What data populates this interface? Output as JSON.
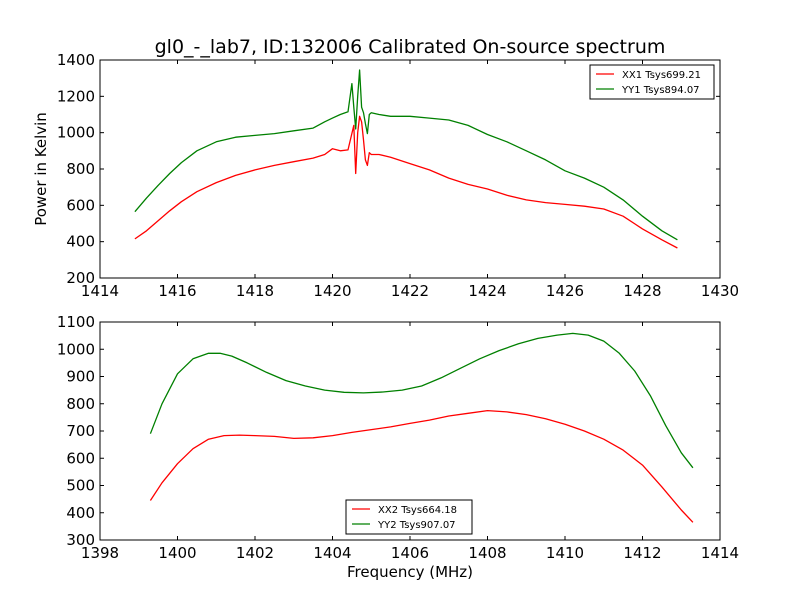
{
  "chart_data": [
    {
      "type": "line",
      "title": "gl0_-_lab7, ID:132006 Calibrated On-source spectrum",
      "xlabel": "",
      "ylabel": "Power in Kelvin",
      "xlim": [
        1414,
        1430
      ],
      "ylim": [
        200,
        1400
      ],
      "xticks": [
        1414,
        1416,
        1418,
        1420,
        1422,
        1424,
        1426,
        1428,
        1430
      ],
      "yticks": [
        200,
        400,
        600,
        800,
        1000,
        1200,
        1400
      ],
      "grid": false,
      "legend_position": "top-right",
      "series": [
        {
          "name": "XX1 Tsys699.21",
          "color": "#ff0000",
          "x": [
            1414.9,
            1415.2,
            1415.5,
            1415.8,
            1416.1,
            1416.5,
            1417.0,
            1417.5,
            1418.0,
            1418.5,
            1419.0,
            1419.5,
            1419.8,
            1420.0,
            1420.2,
            1420.4,
            1420.55,
            1420.6,
            1420.65,
            1420.7,
            1420.75,
            1420.8,
            1420.85,
            1420.9,
            1420.95,
            1421.0,
            1421.2,
            1421.5,
            1422.0,
            1422.5,
            1423.0,
            1423.5,
            1424.0,
            1424.5,
            1425.0,
            1425.5,
            1426.0,
            1426.5,
            1427.0,
            1427.5,
            1428.0,
            1428.5,
            1428.9
          ],
          "values": [
            415,
            460,
            515,
            570,
            620,
            675,
            725,
            765,
            795,
            820,
            840,
            860,
            880,
            912,
            900,
            905,
            1040,
            775,
            1000,
            1090,
            1060,
            960,
            850,
            820,
            890,
            880,
            880,
            865,
            830,
            795,
            750,
            715,
            690,
            655,
            630,
            615,
            605,
            595,
            580,
            540,
            470,
            410,
            365
          ]
        },
        {
          "name": "YY1 Tsys894.07",
          "color": "#008000",
          "x": [
            1414.9,
            1415.2,
            1415.5,
            1415.8,
            1416.1,
            1416.5,
            1417.0,
            1417.5,
            1418.0,
            1418.5,
            1419.0,
            1419.5,
            1419.8,
            1420.0,
            1420.2,
            1420.4,
            1420.5,
            1420.55,
            1420.6,
            1420.65,
            1420.7,
            1420.75,
            1420.8,
            1420.85,
            1420.9,
            1420.95,
            1421.0,
            1421.2,
            1421.5,
            1422.0,
            1422.5,
            1423.0,
            1423.5,
            1424.0,
            1424.5,
            1425.0,
            1425.5,
            1426.0,
            1426.5,
            1427.0,
            1427.5,
            1428.0,
            1428.5,
            1428.9
          ],
          "values": [
            565,
            640,
            710,
            775,
            835,
            900,
            950,
            975,
            985,
            995,
            1010,
            1025,
            1060,
            1080,
            1100,
            1115,
            1270,
            1140,
            1020,
            1200,
            1345,
            1140,
            1110,
            1050,
            995,
            1100,
            1110,
            1100,
            1090,
            1090,
            1080,
            1070,
            1040,
            990,
            950,
            900,
            850,
            790,
            750,
            700,
            630,
            540,
            460,
            410
          ]
        }
      ]
    },
    {
      "type": "line",
      "title": "",
      "xlabel": "Frequency (MHz)",
      "ylabel": "",
      "xlim": [
        1398,
        1414
      ],
      "ylim": [
        300,
        1100
      ],
      "xticks": [
        1398,
        1400,
        1402,
        1404,
        1406,
        1408,
        1410,
        1412,
        1414
      ],
      "yticks": [
        300,
        400,
        500,
        600,
        700,
        800,
        900,
        1000,
        1100
      ],
      "grid": false,
      "legend_position": "bottom-center",
      "series": [
        {
          "name": "XX2 Tsys664.18",
          "color": "#ff0000",
          "x": [
            1399.3,
            1399.6,
            1400.0,
            1400.4,
            1400.8,
            1401.2,
            1401.6,
            1402.0,
            1402.5,
            1403.0,
            1403.5,
            1404.0,
            1404.5,
            1405.0,
            1405.5,
            1406.0,
            1406.5,
            1407.0,
            1407.5,
            1408.0,
            1408.5,
            1409.0,
            1409.5,
            1410.0,
            1410.5,
            1411.0,
            1411.5,
            1412.0,
            1412.5,
            1413.0,
            1413.3
          ],
          "values": [
            445,
            510,
            580,
            635,
            670,
            683,
            685,
            683,
            680,
            673,
            675,
            683,
            695,
            705,
            715,
            728,
            740,
            755,
            765,
            775,
            770,
            760,
            745,
            725,
            700,
            670,
            630,
            575,
            495,
            410,
            365
          ]
        },
        {
          "name": "YY2 Tsys907.07",
          "color": "#008000",
          "x": [
            1399.3,
            1399.6,
            1400.0,
            1400.4,
            1400.8,
            1401.1,
            1401.4,
            1401.8,
            1402.3,
            1402.8,
            1403.3,
            1403.8,
            1404.3,
            1404.8,
            1405.3,
            1405.8,
            1406.3,
            1406.8,
            1407.3,
            1407.8,
            1408.3,
            1408.8,
            1409.3,
            1409.8,
            1410.2,
            1410.6,
            1411.0,
            1411.4,
            1411.8,
            1412.2,
            1412.6,
            1413.0,
            1413.3
          ],
          "values": [
            690,
            800,
            910,
            965,
            985,
            985,
            975,
            950,
            915,
            885,
            865,
            850,
            842,
            840,
            843,
            850,
            865,
            895,
            930,
            965,
            995,
            1020,
            1040,
            1052,
            1058,
            1052,
            1030,
            985,
            920,
            830,
            720,
            620,
            565
          ]
        }
      ]
    }
  ]
}
